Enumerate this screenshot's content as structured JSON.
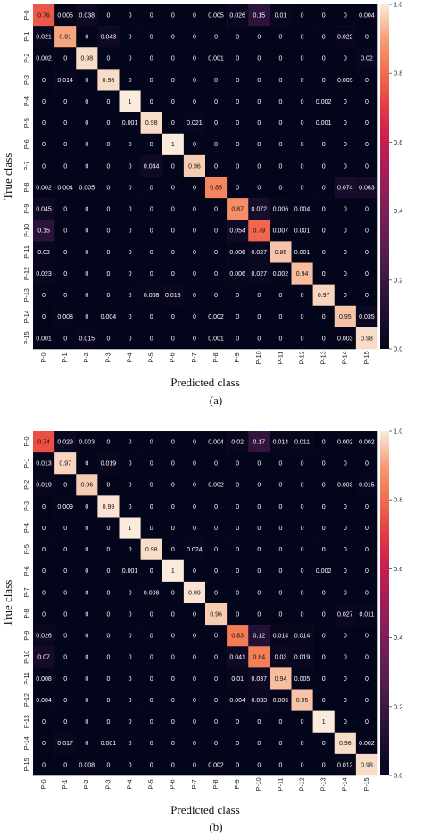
{
  "chart_data": [
    {
      "type": "heatmap",
      "caption": "(a)",
      "xlabel": "Predicted class",
      "ylabel": "True class",
      "x_categories": [
        "P-0",
        "P-1",
        "P-2",
        "P-3",
        "P-4",
        "P-5",
        "P-6",
        "P-7",
        "P-8",
        "P-9",
        "P-10",
        "P-11",
        "P-12",
        "P-13",
        "P-14",
        "P-15"
      ],
      "y_categories": [
        "P-0",
        "P-1",
        "P-2",
        "P-3",
        "P-4",
        "P-5",
        "P-6",
        "P-7",
        "P-8",
        "P-9",
        "P-10",
        "P-11",
        "P-12",
        "P-13",
        "P-14",
        "P-15"
      ],
      "colorbar": {
        "range": [
          0,
          1
        ],
        "ticks": [
          "0.0",
          "0.2",
          "0.4",
          "0.6",
          "0.8",
          "1.0"
        ]
      },
      "values": [
        [
          "0.76",
          "0.005",
          "0.038",
          "0",
          "0",
          "0",
          "0",
          "0",
          "0.005",
          "0.026",
          "0.15",
          "0.01",
          "0",
          "0",
          "0",
          "0.004"
        ],
        [
          "0.021",
          "0.91",
          "0",
          "0.043",
          "0",
          "0",
          "0",
          "0",
          "0",
          "0",
          "0",
          "0",
          "0",
          "0",
          "0.022",
          "0"
        ],
        [
          "0.002",
          "0",
          "0.98",
          "0",
          "0",
          "0",
          "0",
          "0",
          "0.001",
          "0",
          "0",
          "0",
          "0",
          "0",
          "0",
          "0.02"
        ],
        [
          "0",
          "0.014",
          "0",
          "0.98",
          "0",
          "0",
          "0",
          "0",
          "0",
          "0",
          "0",
          "0",
          "0",
          "0",
          "0.005",
          "0"
        ],
        [
          "0",
          "0",
          "0",
          "0",
          "1",
          "0",
          "0",
          "0",
          "0",
          "0",
          "0",
          "0",
          "0",
          "0.002",
          "0",
          "0"
        ],
        [
          "0",
          "0",
          "0",
          "0",
          "0.001",
          "0.98",
          "0",
          "0.021",
          "0",
          "0",
          "0",
          "0",
          "0",
          "0.001",
          "0",
          "0"
        ],
        [
          "0",
          "0",
          "0",
          "0",
          "0",
          "0",
          "1",
          "0",
          "0",
          "0",
          "0",
          "0",
          "0",
          "0",
          "0",
          "0"
        ],
        [
          "0",
          "0",
          "0",
          "0",
          "0",
          "0.044",
          "0",
          "0.96",
          "0",
          "0",
          "0",
          "0",
          "0",
          "0",
          "0",
          "0"
        ],
        [
          "0.002",
          "0.004",
          "0.005",
          "0",
          "0",
          "0",
          "0",
          "0",
          "0.85",
          "0",
          "0",
          "0",
          "0",
          "0",
          "0.074",
          "0.063"
        ],
        [
          "0.045",
          "0",
          "0",
          "0",
          "0",
          "0",
          "0",
          "0",
          "0",
          "0.87",
          "0.072",
          "0.006",
          "0.004",
          "0",
          "0",
          "0"
        ],
        [
          "0.15",
          "0",
          "0",
          "0",
          "0",
          "0",
          "0",
          "0",
          "0",
          "0.054",
          "0.79",
          "0.007",
          "0.001",
          "0",
          "0",
          "0"
        ],
        [
          "0.02",
          "0",
          "0",
          "0",
          "0",
          "0",
          "0",
          "0",
          "0",
          "0.006",
          "0.027",
          "0.95",
          "0.001",
          "0",
          "0",
          "0"
        ],
        [
          "0.023",
          "0",
          "0",
          "0",
          "0",
          "0",
          "0",
          "0",
          "0",
          "0.006",
          "0.027",
          "0.002",
          "0.94",
          "0",
          "0",
          "0"
        ],
        [
          "0",
          "0",
          "0",
          "0",
          "0",
          "0.008",
          "0.018",
          "0",
          "0",
          "0",
          "0",
          "0",
          "0",
          "0.97",
          "0",
          "0"
        ],
        [
          "0",
          "0.008",
          "0",
          "0.004",
          "0",
          "0",
          "0",
          "0",
          "0.002",
          "0",
          "0",
          "0",
          "0",
          "0",
          "0.95",
          "0.035"
        ],
        [
          "0.001",
          "0",
          "0.015",
          "0",
          "0",
          "0",
          "0",
          "0",
          "0.001",
          "0",
          "0",
          "0",
          "0",
          "0",
          "0.003",
          "0.98"
        ]
      ]
    },
    {
      "type": "heatmap",
      "caption": "(b)",
      "xlabel": "Predicted class",
      "ylabel": "True class",
      "x_categories": [
        "P-0",
        "P-1",
        "P-2",
        "P-3",
        "P-4",
        "P-5",
        "P-6",
        "P-7",
        "P-8",
        "P-9",
        "P-10",
        "P-11",
        "P-12",
        "P-13",
        "P-14",
        "P-15"
      ],
      "y_categories": [
        "P-0",
        "P-1",
        "P-2",
        "P-3",
        "P-4",
        "P-5",
        "P-6",
        "P-7",
        "P-8",
        "P-9",
        "P-10",
        "P-11",
        "P-12",
        "P-13",
        "P-14",
        "P-15"
      ],
      "colorbar": {
        "range": [
          0,
          1
        ],
        "ticks": [
          "0.0",
          "0.2",
          "0.4",
          "0.6",
          "0.8",
          "1.0"
        ]
      },
      "values": [
        [
          "0.74",
          "0.029",
          "0.003",
          "0",
          "0",
          "0",
          "0",
          "0",
          "0.004",
          "0.02",
          "0.17",
          "0.014",
          "0.011",
          "0",
          "0.002",
          "0.002"
        ],
        [
          "0.013",
          "0.97",
          "0",
          "0.019",
          "0",
          "0",
          "0",
          "0",
          "0",
          "0",
          "0",
          "0",
          "0",
          "0",
          "0",
          "0"
        ],
        [
          "0.019",
          "0",
          "0.96",
          "0",
          "0",
          "0",
          "0",
          "0",
          "0.002",
          "0",
          "0",
          "0",
          "0",
          "0",
          "0.003",
          "0.015"
        ],
        [
          "0",
          "0.009",
          "0",
          "0.99",
          "0",
          "0",
          "0",
          "0",
          "0",
          "0",
          "0",
          "0",
          "0",
          "0",
          "0",
          "0"
        ],
        [
          "0",
          "0",
          "0",
          "0",
          "1",
          "0",
          "0",
          "0",
          "0",
          "0",
          "0",
          "0",
          "0",
          "0",
          "0",
          "0"
        ],
        [
          "0",
          "0",
          "0",
          "0",
          "0",
          "0.98",
          "0",
          "0.024",
          "0",
          "0",
          "0",
          "0",
          "0",
          "0",
          "0",
          "0"
        ],
        [
          "0",
          "0",
          "0",
          "0",
          "0.001",
          "0",
          "1",
          "0",
          "0",
          "0",
          "0",
          "0",
          "0",
          "0.002",
          "0",
          "0"
        ],
        [
          "0",
          "0",
          "0",
          "0",
          "0",
          "0.008",
          "0",
          "0.99",
          "0",
          "0",
          "0",
          "0",
          "0",
          "0",
          "0",
          "0"
        ],
        [
          "0",
          "0",
          "0",
          "0",
          "0",
          "0",
          "0",
          "0",
          "0.96",
          "0",
          "0",
          "0",
          "0",
          "0",
          "0.027",
          "0.011"
        ],
        [
          "0.026",
          "0",
          "0",
          "0",
          "0",
          "0",
          "0",
          "0",
          "0",
          "0.83",
          "0.12",
          "0.014",
          "0.014",
          "0",
          "0",
          "0"
        ],
        [
          "0.07",
          "0",
          "0",
          "0",
          "0",
          "0",
          "0",
          "0",
          "0",
          "0.041",
          "0.84",
          "0.03",
          "0.019",
          "0",
          "0",
          "0"
        ],
        [
          "0.008",
          "0",
          "0",
          "0",
          "0",
          "0",
          "0",
          "0",
          "0",
          "0.01",
          "0.037",
          "0.94",
          "0.005",
          "0",
          "0",
          "0"
        ],
        [
          "0.004",
          "0",
          "0",
          "0",
          "0",
          "0",
          "0",
          "0",
          "0",
          "0.004",
          "0.033",
          "0.006",
          "0.95",
          "0",
          "0",
          "0"
        ],
        [
          "0",
          "0",
          "0",
          "0",
          "0",
          "0",
          "0",
          "0",
          "0",
          "0",
          "0",
          "0",
          "0",
          "1",
          "0",
          "0"
        ],
        [
          "0",
          "0.017",
          "0",
          "0.001",
          "0",
          "0",
          "0",
          "0",
          "0",
          "0",
          "0",
          "0",
          "0",
          "0",
          "0.98",
          "0.002"
        ],
        [
          "0",
          "0",
          "0.008",
          "0",
          "0",
          "0",
          "0",
          "0",
          "0.002",
          "0",
          "0",
          "0",
          "0",
          "0",
          "0.012",
          "0.98"
        ]
      ]
    }
  ]
}
